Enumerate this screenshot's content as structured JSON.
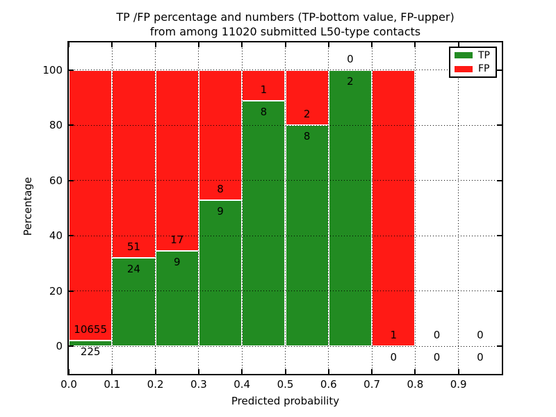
{
  "window": {
    "background": "#ffffff"
  },
  "chart_data": {
    "type": "bar",
    "stacked": true,
    "title_lines": [
      "TP /FP percentage and numbers (TP-bottom value, FP-upper)",
      "from among 11020 submitted L50-type contacts"
    ],
    "xlabel": "Predicted probability",
    "ylabel": "Percentage",
    "xlim": [
      0.0,
      1.0
    ],
    "ylim": [
      -10,
      110
    ],
    "grid": "dotted",
    "bin_start": 0.0,
    "bin_width": 0.1,
    "x_ticks": [
      {
        "value": 0.0,
        "label": "0.0"
      },
      {
        "value": 0.1,
        "label": "0.1"
      },
      {
        "value": 0.2,
        "label": "0.2"
      },
      {
        "value": 0.3,
        "label": "0.3"
      },
      {
        "value": 0.4,
        "label": "0.4"
      },
      {
        "value": 0.5,
        "label": "0.5"
      },
      {
        "value": 0.6,
        "label": "0.6"
      },
      {
        "value": 0.7,
        "label": "0.7"
      },
      {
        "value": 0.8,
        "label": "0.8"
      },
      {
        "value": 0.9,
        "label": "0.9"
      }
    ],
    "y_ticks": [
      {
        "value": 0,
        "label": "0"
      },
      {
        "value": 20,
        "label": "20"
      },
      {
        "value": 40,
        "label": "40"
      },
      {
        "value": 60,
        "label": "60"
      },
      {
        "value": 80,
        "label": "80"
      },
      {
        "value": 100,
        "label": "100"
      }
    ],
    "bins": [
      {
        "range": "0.0-0.1",
        "tp": 225,
        "fp": 10655
      },
      {
        "range": "0.1-0.2",
        "tp": 24,
        "fp": 51
      },
      {
        "range": "0.2-0.3",
        "tp": 9,
        "fp": 17
      },
      {
        "range": "0.3-0.4",
        "tp": 9,
        "fp": 8
      },
      {
        "range": "0.4-0.5",
        "tp": 8,
        "fp": 1
      },
      {
        "range": "0.5-0.6",
        "tp": 8,
        "fp": 2
      },
      {
        "range": "0.6-0.7",
        "tp": 2,
        "fp": 0
      },
      {
        "range": "0.7-0.8",
        "tp": 0,
        "fp": 1
      },
      {
        "range": "0.8-0.9",
        "tp": 0,
        "fp": 0
      },
      {
        "range": "0.9-1.0",
        "tp": 0,
        "fp": 0
      }
    ],
    "series": [
      {
        "name": "TP",
        "color": "#228b22",
        "values": [
          225,
          24,
          9,
          9,
          8,
          8,
          2,
          0,
          0,
          0
        ]
      },
      {
        "name": "FP",
        "color": "#ff1a15",
        "values": [
          10655,
          51,
          17,
          8,
          1,
          2,
          0,
          1,
          0,
          0
        ]
      }
    ],
    "legend": {
      "position": "upper right",
      "entries": [
        {
          "label": "TP",
          "color": "#228b22"
        },
        {
          "label": "FP",
          "color": "#ff1a15"
        }
      ]
    }
  }
}
